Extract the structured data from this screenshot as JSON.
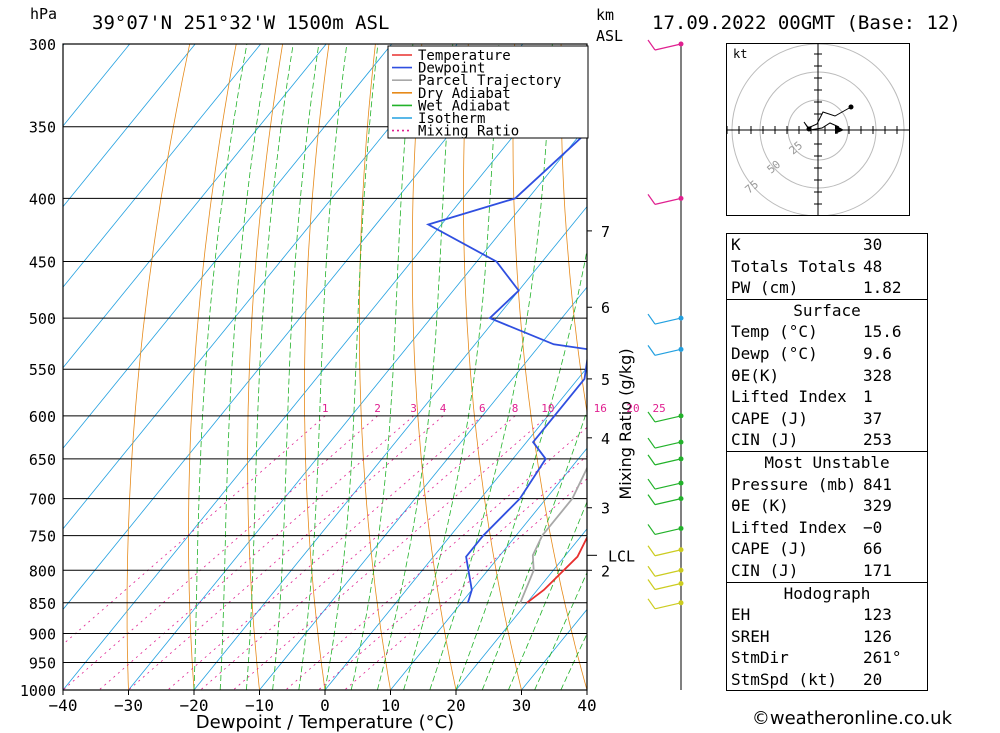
{
  "header": {
    "location": "39°07'N 251°32'W 1500m ASL",
    "datetime": "17.09.2022 00GMT (Base: 12)",
    "pressure_unit": "hPa",
    "height_unit_1": "km",
    "height_unit_2": "ASL"
  },
  "chart_data": {
    "type": "line",
    "title": "39°07'N 251°32'W 1500m ASL",
    "xlabel": "Dewpoint / Temperature (°C)",
    "ylabel": "hPa",
    "secondary_ylabel": "Mixing Ratio (g/kg)",
    "x_ticks": [
      -40,
      -30,
      -20,
      -10,
      0,
      10,
      20,
      30,
      40
    ],
    "x_tick_labels": [
      "−40",
      "−30",
      "−20",
      "−10",
      "0",
      "10",
      "20",
      "30",
      "40"
    ],
    "p_levels": [
      300,
      350,
      400,
      450,
      500,
      550,
      600,
      650,
      700,
      750,
      800,
      850,
      900,
      950,
      1000
    ],
    "xlim": [
      -40,
      40
    ],
    "plim": [
      300,
      1000
    ],
    "legend": [
      "Temperature",
      "Dewpoint",
      "Parcel Trajectory",
      "Dry Adiabat",
      "Wet Adiabat",
      "Isotherm",
      "Mixing Ratio"
    ],
    "legend_colors": [
      "#e8302f",
      "#2f4fe0",
      "#a8a8a8",
      "#e68a1a",
      "#22b22a",
      "#22a0e0",
      "#e02090"
    ],
    "mixing_ratio_labels": [
      "1",
      "2",
      "3",
      "4",
      "6",
      "8",
      "10",
      "16",
      "20",
      "25"
    ],
    "mixing_ratio_x": [
      -34,
      -26,
      -20.5,
      -16,
      -10,
      -5,
      0,
      8,
      13,
      17
    ],
    "km_labels": [
      "7",
      "6",
      "5",
      "4",
      "3",
      "2"
    ],
    "km_pressure": [
      425,
      490,
      560,
      625,
      712,
      800
    ],
    "lcl_label": "LCL",
    "lcl_pressure": 778,
    "series": [
      {
        "name": "Temperature",
        "color": "#e8302f",
        "points": [
          [
            -10,
            300
          ],
          [
            -4,
            350
          ],
          [
            2,
            400
          ],
          [
            4,
            420
          ],
          [
            5,
            450
          ],
          [
            6,
            475
          ],
          [
            9,
            500
          ],
          [
            6,
            530
          ],
          [
            8,
            560
          ],
          [
            10,
            600
          ],
          [
            14,
            650
          ],
          [
            18,
            700
          ],
          [
            21,
            750
          ],
          [
            22,
            780
          ],
          [
            21,
            830
          ],
          [
            20,
            850
          ]
        ]
      },
      {
        "name": "Dewpoint",
        "color": "#2f4fe0",
        "points": [
          [
            -28,
            300
          ],
          [
            -29,
            350
          ],
          [
            -32,
            400
          ],
          [
            -42,
            420
          ],
          [
            -27,
            450
          ],
          [
            -20,
            475
          ],
          [
            -21,
            500
          ],
          [
            -8,
            525
          ],
          [
            -2,
            530
          ],
          [
            1,
            560
          ],
          [
            1,
            600
          ],
          [
            1,
            630
          ],
          [
            5,
            650
          ],
          [
            6,
            700
          ],
          [
            5,
            750
          ],
          [
            5,
            780
          ],
          [
            10,
            830
          ],
          [
            11,
            850
          ]
        ]
      },
      {
        "name": "Parcel Trajectory",
        "color": "#a8a8a8",
        "points": [
          [
            -12,
            300
          ],
          [
            -6,
            350
          ],
          [
            -1,
            400
          ],
          [
            2,
            450
          ],
          [
            5,
            500
          ],
          [
            7,
            550
          ],
          [
            9,
            600
          ],
          [
            12,
            650
          ],
          [
            14,
            700
          ],
          [
            14,
            750
          ],
          [
            15,
            778
          ],
          [
            17,
            800
          ],
          [
            19,
            850
          ]
        ]
      }
    ],
    "wind_barbs_pressure": [
      300,
      400,
      500,
      530,
      600,
      630,
      650,
      680,
      700,
      740,
      770,
      800,
      820,
      850
    ]
  },
  "hodograph": {
    "unit": "kt",
    "ring_labels": [
      "25",
      "50",
      "75"
    ]
  },
  "indices": [
    {
      "label": "K",
      "value": "30"
    },
    {
      "label": "Totals Totals",
      "value": "48"
    },
    {
      "label": "PW (cm)",
      "value": "1.82"
    }
  ],
  "surface": {
    "title": "Surface",
    "rows": [
      {
        "label": "Temp (°C)",
        "value": "15.6"
      },
      {
        "label": "Dewp (°C)",
        "value": "9.6"
      },
      {
        "label": "θE(K)",
        "value": "328"
      },
      {
        "label": "Lifted Index",
        "value": "1"
      },
      {
        "label": "CAPE (J)",
        "value": "37"
      },
      {
        "label": "CIN (J)",
        "value": "253"
      }
    ]
  },
  "most_unstable": {
    "title": "Most Unstable",
    "rows": [
      {
        "label": "Pressure (mb)",
        "value": "841"
      },
      {
        "label": "θE (K)",
        "value": "329"
      },
      {
        "label": "Lifted Index",
        "value": "−0"
      },
      {
        "label": "CAPE (J)",
        "value": "66"
      },
      {
        "label": "CIN (J)",
        "value": "171"
      }
    ]
  },
  "hodograph_table": {
    "title": "Hodograph",
    "rows": [
      {
        "label": "EH",
        "value": "123"
      },
      {
        "label": "SREH",
        "value": "126"
      },
      {
        "label": "StmDir",
        "value": "261°"
      },
      {
        "label": "StmSpd (kt)",
        "value": "20"
      }
    ]
  },
  "footer": "©weatheronline.co.uk"
}
